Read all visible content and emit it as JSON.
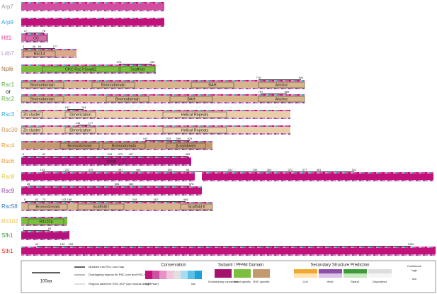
{
  "proteins": [
    {
      "name": "Arp7"
    },
    {
      "name": "Arp9"
    },
    {
      "name": "Htl1",
      "numbers": [
        "17",
        "78"
      ],
      "domains": [
        "CC"
      ]
    },
    {
      "name": "Ldb7",
      "numbers": [
        "4",
        "46",
        "59",
        "177"
      ],
      "domains": [
        "Rsc14"
      ]
    },
    {
      "name": "Npl6",
      "numbers": [
        "376",
        "435"
      ],
      "domains": [
        "CRC Rsc7/Swp82",
        "Scaffold"
      ]
    },
    {
      "name": "Rsc1",
      "numbers": [
        "776",
        "904"
      ],
      "domains": [
        "Bromodomain",
        "Bromodomain",
        "BAH",
        "Anchor"
      ]
    },
    {
      "name": "Rsc2",
      "numbers": [
        "787",
        "889"
      ],
      "domains": [
        "Bromodomain",
        "Bromodomain",
        "BAH",
        "Anchor"
      ]
    },
    {
      "name": "Rsc3",
      "numbers": [
        "152",
        "204"
      ],
      "domains": [
        "Zn cluster",
        "Dimerization",
        "Helical Repeats"
      ]
    },
    {
      "name": "Rsc30",
      "numbers": [
        "134",
        "177"
      ],
      "domains": [
        "Zn cluster",
        "Dimerization",
        "Helical Repeats"
      ]
    },
    {
      "name": "Rsc4",
      "numbers": [
        "443",
        "533",
        "588",
        "625"
      ],
      "domains": [
        "Bromodomain",
        "Bromodomain",
        "β-sandwich"
      ]
    },
    {
      "name": "Rsc6",
      "numbers": [
        "6",
        "83",
        "318",
        "375",
        "407",
        "483"
      ],
      "domains": [
        "SWIB"
      ]
    },
    {
      "name": "Rsc8",
      "numbers": [
        "103",
        "222",
        "370",
        "387",
        "465",
        "551",
        "56",
        "204",
        "239",
        "304",
        "372",
        "377",
        "381",
        "512"
      ]
    },
    {
      "name": "Rsc9",
      "numbers": [
        "28",
        "360",
        "306",
        "578"
      ]
    },
    {
      "name": "Rsc58",
      "numbers": [
        "9",
        "62",
        "73",
        "143",
        "166",
        "318",
        "387",
        "465"
      ],
      "domains": [
        "Bromodomain",
        "Scaffold I",
        "Scaffold II"
      ]
    },
    {
      "name": "Rtt102",
      "domains": [
        "Rtt102p"
      ]
    },
    {
      "name": "Sfh1",
      "numbers": [
        "1",
        "83"
      ]
    },
    {
      "name": "Sth1",
      "numbers": [
        "43",
        "135",
        "154",
        "1359"
      ]
    }
  ],
  "or_label": "or",
  "legend": {
    "scale": "100aa",
    "lines": [
      "Modeled into RSC core map",
      "Overlapping regions for RSC core and RSC-NCP",
      "Regions added for RSC-NCP (Arp module and ATPase)"
    ],
    "conservation": {
      "title": "Conservation",
      "high": "high",
      "low": "low"
    },
    "domain": {
      "title": "Subunit / PFAM Domain",
      "items": [
        "Evolutionary conserved",
        "Yeast specific",
        "RSC specific"
      ]
    },
    "structure": {
      "title": "Secondary Structure Prediction",
      "items": [
        "Coil",
        "Helix",
        "Strand",
        "Disordered"
      ],
      "confidence": "Confidence",
      "high": "high",
      "low": "low"
    }
  }
}
